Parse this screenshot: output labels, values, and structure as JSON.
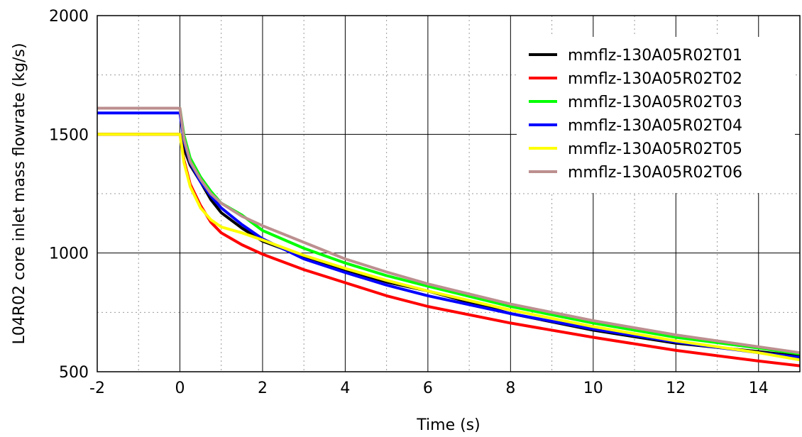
{
  "chart_data": {
    "type": "line",
    "xlabel": "Time (s)",
    "ylabel": "L04R02 core inlet mass flowrate (kg/s)",
    "xlim": [
      -2,
      15
    ],
    "ylim": [
      500,
      2000
    ],
    "xticks": [
      -2,
      0,
      2,
      4,
      6,
      8,
      10,
      12,
      14
    ],
    "xtick_labels": [
      "-2",
      "0",
      "2",
      "4",
      "6",
      "8",
      "10",
      "12",
      "14"
    ],
    "yticks": [
      500,
      1000,
      1500,
      2000
    ],
    "ytick_labels": [
      "500",
      "1000",
      "1500",
      "2000"
    ],
    "minor_grid_x": 1,
    "minor_grid_y": 250,
    "grid": true,
    "legend_position": "top-right",
    "series": [
      {
        "name": "mmflz-130A05R02T01",
        "color": "#000000",
        "x": [
          -2,
          0,
          0.1,
          0.25,
          0.5,
          0.75,
          1,
          1.5,
          2,
          3,
          4,
          5,
          6,
          8,
          10,
          12,
          14,
          15
        ],
        "y": [
          1500,
          1500,
          1440,
          1370,
          1300,
          1225,
          1170,
          1105,
          1050,
          985,
          928,
          878,
          840,
          745,
          675,
          620,
          585,
          565
        ]
      },
      {
        "name": "mmflz-130A05R02T02",
        "color": "#ff0000",
        "x": [
          -2,
          0,
          0.1,
          0.25,
          0.5,
          0.75,
          1,
          1.5,
          2,
          3,
          4,
          5,
          6,
          8,
          10,
          12,
          14,
          15
        ],
        "y": [
          1500,
          1500,
          1390,
          1290,
          1200,
          1130,
          1085,
          1035,
          995,
          930,
          875,
          820,
          775,
          705,
          645,
          590,
          545,
          525
        ]
      },
      {
        "name": "mmflz-130A05R02T03",
        "color": "#00ff00",
        "x": [
          -2,
          0,
          0.1,
          0.25,
          0.5,
          0.75,
          1,
          1.5,
          2,
          3,
          4,
          5,
          6,
          8,
          10,
          12,
          14,
          15
        ],
        "y": [
          1610,
          1610,
          1495,
          1400,
          1320,
          1260,
          1210,
          1160,
          1095,
          1020,
          958,
          905,
          860,
          775,
          705,
          645,
          600,
          575
        ]
      },
      {
        "name": "mmflz-130A05R02T04",
        "color": "#0000ff",
        "x": [
          -2,
          0,
          0.1,
          0.25,
          0.5,
          0.75,
          1,
          1.5,
          2,
          3,
          4,
          5,
          6,
          8,
          10,
          12,
          14,
          15
        ],
        "y": [
          1590,
          1590,
          1470,
          1380,
          1300,
          1240,
          1190,
          1120,
          1060,
          975,
          918,
          865,
          820,
          745,
          680,
          625,
          580,
          560
        ]
      },
      {
        "name": "mmflz-130A05R02T05",
        "color": "#ffff00",
        "x": [
          -2,
          0,
          0.1,
          0.25,
          0.5,
          0.75,
          1,
          1.5,
          2,
          3,
          4,
          5,
          6,
          8,
          10,
          12,
          14,
          15
        ],
        "y": [
          1500,
          1500,
          1380,
          1280,
          1190,
          1140,
          1110,
          1085,
          1055,
          990,
          935,
          885,
          840,
          760,
          690,
          630,
          580,
          550
        ]
      },
      {
        "name": "mmflz-130A05R02T06",
        "color": "#bc8f8f",
        "x": [
          -2,
          0,
          0.1,
          0.25,
          0.5,
          0.75,
          1,
          1.5,
          2,
          3,
          4,
          5,
          6,
          8,
          10,
          12,
          14,
          15
        ],
        "y": [
          1610,
          1610,
          1480,
          1385,
          1310,
          1250,
          1210,
          1155,
          1115,
          1045,
          975,
          920,
          870,
          785,
          715,
          655,
          605,
          580
        ]
      }
    ]
  }
}
